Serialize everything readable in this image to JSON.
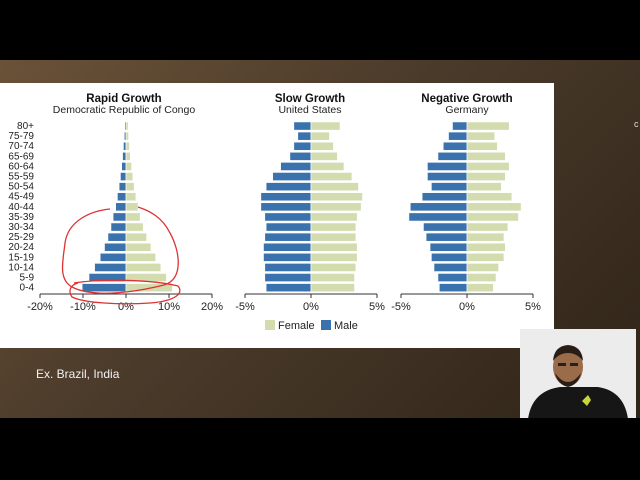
{
  "slide": {
    "caption": "Ex. Brazil, India",
    "edge_glyph": "c"
  },
  "colors": {
    "male": "#3a72ad",
    "female": "#d2dcae",
    "annotation": "#d33",
    "background": "#5a4430"
  },
  "legend": {
    "female": "Female",
    "male": "Male"
  },
  "chart_data": [
    {
      "type": "bar",
      "orientation": "horizontal-pyramid",
      "title": "Rapid Growth",
      "subtitle": "Democratic Republic of Congo",
      "categories": [
        "80+",
        "75-79",
        "70-74",
        "65-69",
        "60-64",
        "55-59",
        "50-54",
        "45-49",
        "40-44",
        "35-39",
        "30-34",
        "25-29",
        "20-24",
        "15-19",
        "10-14",
        "5-9",
        "0-4"
      ],
      "series": [
        {
          "name": "Male",
          "values": [
            -0.3,
            -0.4,
            -0.6,
            -0.8,
            -1.0,
            -1.3,
            -1.6,
            -2.0,
            -2.4,
            -3.0,
            -3.5,
            -4.2,
            -5.0,
            -6.0,
            -7.3,
            -8.6,
            -10.2
          ]
        },
        {
          "name": "Female",
          "values": [
            0.5,
            0.6,
            0.8,
            1.0,
            1.3,
            1.6,
            1.9,
            2.3,
            2.8,
            3.3,
            4.0,
            4.8,
            5.8,
            6.9,
            8.1,
            9.4,
            10.8
          ]
        }
      ],
      "xticks": [
        "-20%",
        "-10%",
        "0%",
        "10%",
        "20%"
      ],
      "xlim": [
        -20,
        20
      ]
    },
    {
      "type": "bar",
      "orientation": "horizontal-pyramid",
      "title": "Slow Growth",
      "subtitle": "United States",
      "series": [
        {
          "name": "Male",
          "values": [
            -1.3,
            -1.0,
            -1.3,
            -1.6,
            -2.3,
            -2.9,
            -3.4,
            -3.8,
            -3.8,
            -3.5,
            -3.4,
            -3.5,
            -3.6,
            -3.6,
            -3.5,
            -3.5,
            -3.4
          ]
        },
        {
          "name": "Female",
          "values": [
            2.2,
            1.4,
            1.7,
            2.0,
            2.5,
            3.1,
            3.6,
            3.9,
            3.8,
            3.5,
            3.4,
            3.4,
            3.5,
            3.5,
            3.4,
            3.3,
            3.3
          ]
        }
      ],
      "xticks": [
        "-5%",
        "0%",
        "5%"
      ],
      "xlim": [
        -5,
        5
      ]
    },
    {
      "type": "bar",
      "orientation": "horizontal-pyramid",
      "title": "Negative Growth",
      "subtitle": "Germany",
      "series": [
        {
          "name": "Male",
          "values": [
            -1.1,
            -1.4,
            -1.8,
            -2.2,
            -3.0,
            -3.0,
            -2.7,
            -3.4,
            -4.3,
            -4.4,
            -3.3,
            -3.1,
            -2.8,
            -2.7,
            -2.5,
            -2.2,
            -2.1
          ]
        },
        {
          "name": "Female",
          "values": [
            3.2,
            2.1,
            2.3,
            2.9,
            3.2,
            2.9,
            2.6,
            3.4,
            4.1,
            3.9,
            3.1,
            2.8,
            2.9,
            2.8,
            2.4,
            2.2,
            2.0
          ]
        }
      ],
      "xticks": [
        "-5%",
        "0%",
        "5%"
      ],
      "xlim": [
        -5,
        5
      ]
    }
  ]
}
